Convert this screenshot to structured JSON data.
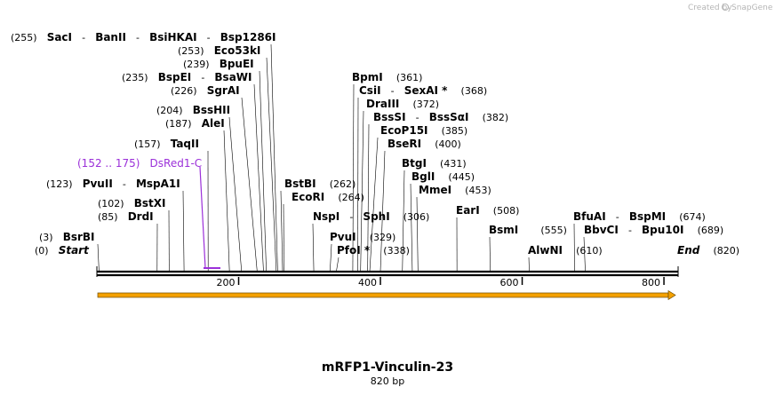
{
  "brand": {
    "created_by": "Created by",
    "name": "SnapGene"
  },
  "map": {
    "title": "mRFP1-Vinculin-23",
    "length_label": "820 bp",
    "length": 820,
    "ticks": [
      "200",
      "400",
      "600",
      "800"
    ],
    "tick_values": [
      200,
      400,
      600,
      800
    ],
    "start_label": "Start",
    "start_pos": "(0)",
    "end_label": "End",
    "end_pos": "(820)"
  },
  "feature": {
    "name": "DsRed1-C",
    "range": "(152 .. 175)",
    "start": 152,
    "end": 175,
    "color": "#9b30d9"
  },
  "orf": {
    "color": "#f4a100",
    "start": 0,
    "end": 820
  },
  "sites": [
    {
      "pos": "(255)",
      "names": [
        "SacI",
        "BanII",
        "BsiHKAI",
        "Bsp1286I"
      ],
      "bp": 255
    },
    {
      "pos": "(253)",
      "names": [
        "Eco53kI"
      ],
      "bp": 253
    },
    {
      "pos": "(239)",
      "names": [
        "BpuEI"
      ],
      "bp": 239
    },
    {
      "pos": "(235)",
      "names": [
        "BspEI",
        "BsaWI"
      ],
      "bp": 235
    },
    {
      "pos": "(226)",
      "names": [
        "SgrAI"
      ],
      "bp": 226
    },
    {
      "pos": "(204)",
      "names": [
        "BssHII"
      ],
      "bp": 204
    },
    {
      "pos": "(187)",
      "names": [
        "AleI"
      ],
      "bp": 187
    },
    {
      "pos": "(157)",
      "names": [
        "TaqII"
      ],
      "bp": 157
    },
    {
      "pos": "(123)",
      "names": [
        "PvuII",
        "MspA1I"
      ],
      "bp": 123
    },
    {
      "pos": "(102)",
      "names": [
        "BstXI"
      ],
      "bp": 102
    },
    {
      "pos": "(85)",
      "names": [
        "DrdI"
      ],
      "bp": 85
    },
    {
      "pos": "(3)",
      "names": [
        "BsrBI"
      ],
      "bp": 3
    },
    {
      "pos": "(361)",
      "names": [
        "BpmI"
      ],
      "bp": 361
    },
    {
      "pos": "(368)",
      "names": [
        "CsiI",
        "SexAI *"
      ],
      "bp": 368
    },
    {
      "pos": "(372)",
      "names": [
        "DraIII"
      ],
      "bp": 372
    },
    {
      "pos": "(382)",
      "names": [
        "BssSI",
        "BssSαI"
      ],
      "bp": 382
    },
    {
      "pos": "(385)",
      "names": [
        "EcoP15I"
      ],
      "bp": 385
    },
    {
      "pos": "(400)",
      "names": [
        "BseRI"
      ],
      "bp": 400
    },
    {
      "pos": "(431)",
      "names": [
        "BtgI"
      ],
      "bp": 431
    },
    {
      "pos": "(445)",
      "names": [
        "BglI"
      ],
      "bp": 445
    },
    {
      "pos": "(453)",
      "names": [
        "MmeI"
      ],
      "bp": 453
    },
    {
      "pos": "(262)",
      "names": [
        "BstBI"
      ],
      "bp": 262
    },
    {
      "pos": "(264)",
      "names": [
        "EcoRI"
      ],
      "bp": 264
    },
    {
      "pos": "(306)",
      "names": [
        "NspI",
        "SphI"
      ],
      "bp": 306
    },
    {
      "pos": "(329)",
      "names": [
        "PvuI"
      ],
      "bp": 329
    },
    {
      "pos": "(338)",
      "names": [
        "PfoI *"
      ],
      "bp": 338
    },
    {
      "pos": "(508)",
      "names": [
        "EarI"
      ],
      "bp": 508
    },
    {
      "pos": "(555)",
      "names": [
        "BsmI"
      ],
      "bp": 555
    },
    {
      "pos": "(610)",
      "names": [
        "AlwNI"
      ],
      "bp": 610
    },
    {
      "pos": "(674)",
      "names": [
        "BfuAI",
        "BspMI"
      ],
      "bp": 674
    },
    {
      "pos": "(689)",
      "names": [
        "BbvCI",
        "Bpu10I"
      ],
      "bp": 689
    }
  ]
}
